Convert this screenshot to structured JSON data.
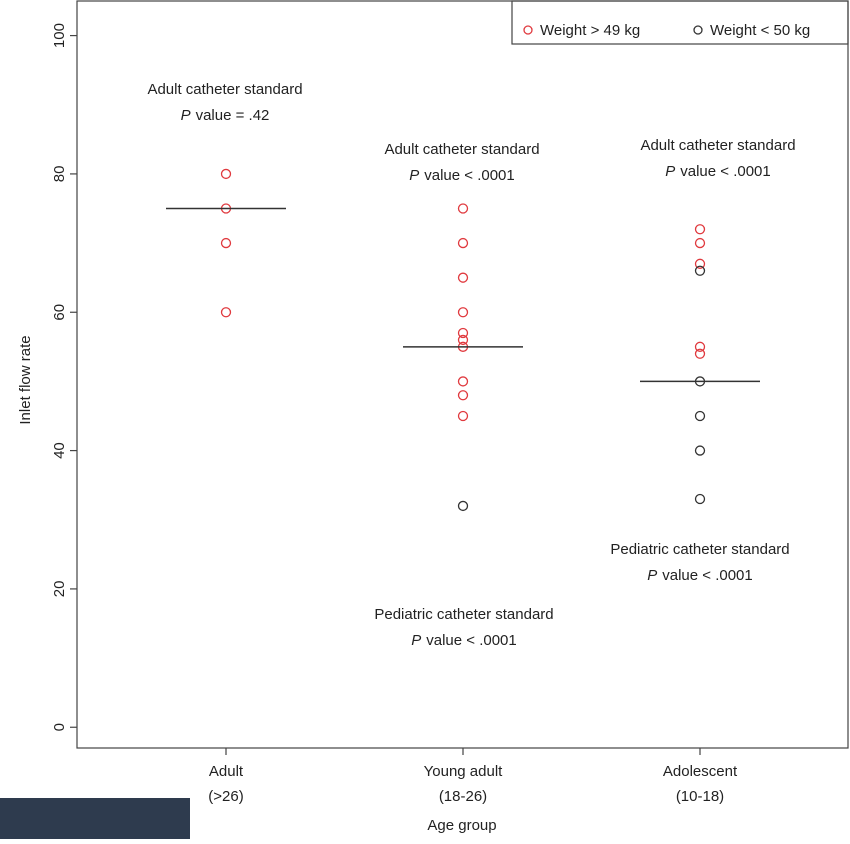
{
  "chart_data": {
    "type": "strip",
    "categories": [
      "Adult",
      "Young adult",
      "Adolescent"
    ],
    "category_ranges": [
      "(>26)",
      "(18-26)",
      "(10-18)"
    ],
    "x_label": "Age group",
    "y_label": "Inlet flow rate",
    "ylim": [
      -3,
      105
    ],
    "yticks": [
      0,
      20,
      40,
      60,
      80,
      100
    ],
    "legend": "top-right",
    "series": [
      {
        "name": "Weight > 49 kg",
        "color": "#e0393e",
        "values": [
          [
            80,
            75,
            70,
            60
          ],
          [
            75,
            70,
            65,
            60,
            57,
            56,
            55,
            50,
            48,
            45
          ],
          [
            72,
            70,
            67,
            55,
            54
          ]
        ]
      },
      {
        "name": "Weight < 50 kg",
        "color": "#333333",
        "values": [
          [],
          [
            32
          ],
          [
            66,
            50,
            45,
            40,
            33
          ]
        ]
      }
    ],
    "medians": [
      75,
      55,
      50
    ],
    "annotations": [
      [
        {
          "label": "Adult catheter standard",
          "stat": "P",
          "text": "value = .42"
        }
      ],
      [
        {
          "label": "Adult catheter standard",
          "stat": "P",
          "text": "value < .0001"
        },
        {
          "label": "Pediatric catheter standard",
          "stat": "P",
          "text": "value < .0001"
        }
      ],
      [
        {
          "label": "Adult catheter standard",
          "stat": "P",
          "text": "value < .0001"
        },
        {
          "label": "Pediatric catheter standard",
          "stat": "P",
          "text": "value < .0001"
        }
      ]
    ]
  }
}
